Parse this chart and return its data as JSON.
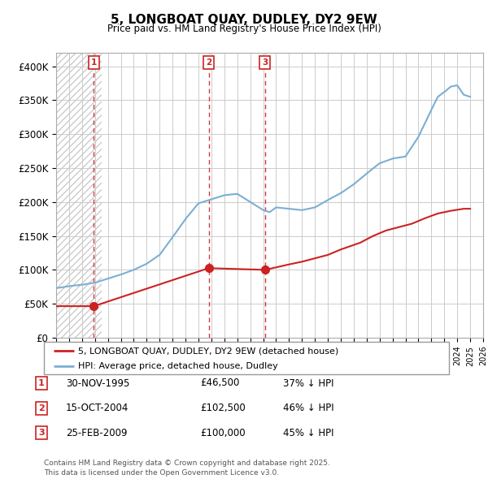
{
  "title": "5, LONGBOAT QUAY, DUDLEY, DY2 9EW",
  "subtitle": "Price paid vs. HM Land Registry's House Price Index (HPI)",
  "ylim": [
    0,
    420000
  ],
  "yticks": [
    0,
    50000,
    100000,
    150000,
    200000,
    250000,
    300000,
    350000,
    400000
  ],
  "ytick_labels": [
    "£0",
    "£50K",
    "£100K",
    "£150K",
    "£200K",
    "£250K",
    "£300K",
    "£350K",
    "£400K"
  ],
  "hpi_color": "#7bafd4",
  "sale_color": "#cc2222",
  "sale_points": [
    {
      "year": 1995.92,
      "price": 46500,
      "label": "1"
    },
    {
      "year": 2004.79,
      "price": 102500,
      "label": "2"
    },
    {
      "year": 2009.15,
      "price": 100000,
      "label": "3"
    }
  ],
  "hpi_knots": [
    [
      1993.0,
      73000
    ],
    [
      1994.0,
      76000
    ],
    [
      1995.0,
      78000
    ],
    [
      1996.0,
      81000
    ],
    [
      1997.0,
      87000
    ],
    [
      1998.0,
      93000
    ],
    [
      1999.0,
      100000
    ],
    [
      2000.0,
      109000
    ],
    [
      2001.0,
      122000
    ],
    [
      2002.0,
      148000
    ],
    [
      2003.0,
      175000
    ],
    [
      2004.0,
      198000
    ],
    [
      2005.0,
      204000
    ],
    [
      2006.0,
      210000
    ],
    [
      2007.0,
      212000
    ],
    [
      2008.0,
      200000
    ],
    [
      2009.0,
      188000
    ],
    [
      2009.5,
      185000
    ],
    [
      2010.0,
      192000
    ],
    [
      2011.0,
      190000
    ],
    [
      2012.0,
      188000
    ],
    [
      2013.0,
      192000
    ],
    [
      2014.0,
      203000
    ],
    [
      2015.0,
      213000
    ],
    [
      2016.0,
      226000
    ],
    [
      2017.0,
      242000
    ],
    [
      2018.0,
      257000
    ],
    [
      2019.0,
      264000
    ],
    [
      2020.0,
      267000
    ],
    [
      2021.0,
      296000
    ],
    [
      2022.0,
      336000
    ],
    [
      2022.5,
      355000
    ],
    [
      2023.0,
      362000
    ],
    [
      2023.5,
      370000
    ],
    [
      2024.0,
      372000
    ],
    [
      2024.5,
      358000
    ],
    [
      2025.0,
      355000
    ]
  ],
  "red_knots": [
    [
      1993.0,
      46500
    ],
    [
      1995.92,
      46500
    ],
    [
      1995.92,
      46500
    ],
    [
      2004.79,
      102500
    ],
    [
      2004.79,
      102500
    ],
    [
      2009.15,
      100000
    ],
    [
      2009.15,
      100000
    ],
    [
      2011.0,
      108000
    ],
    [
      2012.0,
      112000
    ],
    [
      2014.0,
      122000
    ],
    [
      2015.0,
      130000
    ],
    [
      2016.5,
      140000
    ],
    [
      2017.5,
      150000
    ],
    [
      2018.5,
      158000
    ],
    [
      2019.5,
      163000
    ],
    [
      2020.5,
      168000
    ],
    [
      2021.5,
      176000
    ],
    [
      2022.5,
      183000
    ],
    [
      2023.5,
      187000
    ],
    [
      2024.5,
      190000
    ],
    [
      2025.0,
      190000
    ]
  ],
  "legend_sale": "5, LONGBOAT QUAY, DUDLEY, DY2 9EW (detached house)",
  "legend_hpi": "HPI: Average price, detached house, Dudley",
  "table_rows": [
    {
      "num": "1",
      "date": "30-NOV-1995",
      "price": "£46,500",
      "pct": "37% ↓ HPI"
    },
    {
      "num": "2",
      "date": "15-OCT-2004",
      "price": "£102,500",
      "pct": "46% ↓ HPI"
    },
    {
      "num": "3",
      "date": "25-FEB-2009",
      "price": "£100,000",
      "pct": "45% ↓ HPI"
    }
  ],
  "footnote": "Contains HM Land Registry data © Crown copyright and database right 2025.\nThis data is licensed under the Open Government Licence v3.0.",
  "xmin": 1993,
  "xmax": 2026
}
